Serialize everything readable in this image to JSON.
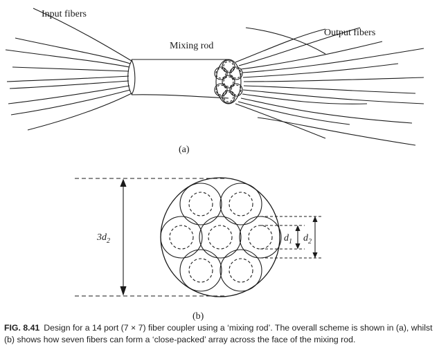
{
  "figure": {
    "labels": {
      "input_fibers": "Input fibers",
      "mixing_rod": "Mixing rod",
      "output_fibers": "Output fibers",
      "part_a": "(a)",
      "part_b": "(b)",
      "dim_3d2": "3d",
      "dim_3d2_sub": "2",
      "dim_d1": "d",
      "dim_d1_sub": "1",
      "dim_d2": "d",
      "dim_d2_sub": "2"
    },
    "caption": {
      "number": "FIG. 8.41",
      "text": "Design for a 14 port (7 × 7) fiber coupler using a ‘mixing rod’. The overall scheme is shown in (a), whilst (b) shows how seven fibers can form a ‘close-packed’ array across the face of the mixing rod."
    }
  }
}
